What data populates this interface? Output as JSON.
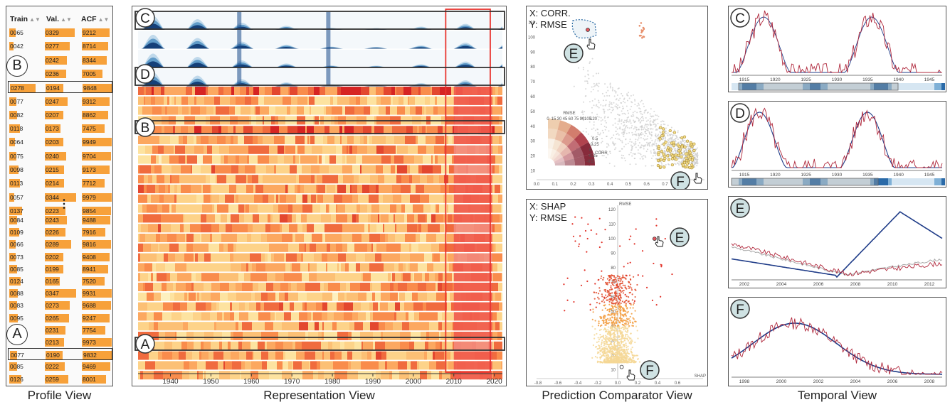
{
  "captions": {
    "profile": "Profile View",
    "representation": "Representation View",
    "comparator": "Prediction Comparator View",
    "temporal": "Temporal View"
  },
  "profile": {
    "headers": {
      "train": "Train",
      "val": "Val.",
      "acf": "ACF"
    },
    "sort_icon": "sort-icon",
    "ellipsis": "⋮",
    "rows_top": [
      {
        "train": "0065",
        "val": "0329",
        "acf": "9212",
        "tv": 0.25,
        "vv": 0.95,
        "av": 0.92
      },
      {
        "train": "0042",
        "val": "0277",
        "acf": "8714",
        "tv": 0.16,
        "vv": 0.8,
        "av": 0.87
      },
      {
        "train": "",
        "val": "0242",
        "acf": "8344",
        "tv": 0.0,
        "vv": 0.7,
        "av": 0.83
      },
      {
        "train": "",
        "val": "0236",
        "acf": "7005",
        "tv": 0.0,
        "vv": 0.68,
        "av": 0.7
      },
      {
        "train": "0278",
        "val": "0194",
        "acf": "9848",
        "tv": 1.0,
        "vv": 0.56,
        "av": 0.98
      },
      {
        "train": "0077",
        "val": "0247",
        "acf": "9312",
        "tv": 0.28,
        "vv": 0.72,
        "av": 0.93
      },
      {
        "train": "0082",
        "val": "0207",
        "acf": "8862",
        "tv": 0.3,
        "vv": 0.6,
        "av": 0.89
      },
      {
        "train": "0118",
        "val": "0173",
        "acf": "7475",
        "tv": 0.42,
        "vv": 0.5,
        "av": 0.75
      },
      {
        "train": "0064",
        "val": "0203",
        "acf": "9949",
        "tv": 0.23,
        "vv": 0.59,
        "av": 0.99
      },
      {
        "train": "0075",
        "val": "0240",
        "acf": "9704",
        "tv": 0.27,
        "vv": 0.69,
        "av": 0.97
      },
      {
        "train": "0098",
        "val": "0215",
        "acf": "9173",
        "tv": 0.35,
        "vv": 0.62,
        "av": 0.92
      },
      {
        "train": "0113",
        "val": "0214",
        "acf": "7712",
        "tv": 0.41,
        "vv": 0.62,
        "av": 0.77
      },
      {
        "train": "0057",
        "val": "0344",
        "acf": "9979",
        "tv": 0.2,
        "vv": 1.0,
        "av": 1.0
      },
      {
        "train": "0137",
        "val": "0223",
        "acf": "9854",
        "tv": 0.49,
        "vv": 0.65,
        "av": 0.98
      }
    ],
    "rows_bottom": [
      {
        "train": "0084",
        "val": "0243",
        "acf": "9488",
        "tv": 0.3,
        "vv": 0.7,
        "av": 0.95
      },
      {
        "train": "0109",
        "val": "0226",
        "acf": "7916",
        "tv": 0.39,
        "vv": 0.66,
        "av": 0.79
      },
      {
        "train": "0066",
        "val": "0289",
        "acf": "9816",
        "tv": 0.24,
        "vv": 0.84,
        "av": 0.98
      },
      {
        "train": "0073",
        "val": "0202",
        "acf": "9408",
        "tv": 0.26,
        "vv": 0.59,
        "av": 0.94
      },
      {
        "train": "0085",
        "val": "0199",
        "acf": "8941",
        "tv": 0.31,
        "vv": 0.58,
        "av": 0.89
      },
      {
        "train": "0124",
        "val": "0165",
        "acf": "7520",
        "tv": 0.45,
        "vv": 0.48,
        "av": 0.75
      },
      {
        "train": "0088",
        "val": "0347",
        "acf": "9931",
        "tv": 0.32,
        "vv": 1.0,
        "av": 0.99
      },
      {
        "train": "0083",
        "val": "0273",
        "acf": "9688",
        "tv": 0.3,
        "vv": 0.79,
        "av": 0.97
      },
      {
        "train": "0095",
        "val": "0265",
        "acf": "9247",
        "tv": 0.34,
        "vv": 0.77,
        "av": 0.92
      },
      {
        "train": "",
        "val": "0231",
        "acf": "7754",
        "tv": 0.0,
        "vv": 0.67,
        "av": 0.78
      },
      {
        "train": "",
        "val": "0213",
        "acf": "9973",
        "tv": 0.0,
        "vv": 0.62,
        "av": 1.0
      },
      {
        "train": "0077",
        "val": "0190",
        "acf": "9832",
        "tv": 0.28,
        "vv": 0.55,
        "av": 0.98
      },
      {
        "train": "0085",
        "val": "0222",
        "acf": "9469",
        "tv": 0.31,
        "vv": 0.64,
        "av": 0.95
      },
      {
        "train": "0126",
        "val": "0259",
        "acf": "8001",
        "tv": 0.46,
        "vv": 0.75,
        "av": 0.8
      }
    ],
    "selected": {
      "B": 4,
      "A": 11
    }
  },
  "representation": {
    "x_ticks": [
      "1940",
      "1950",
      "1960",
      "1970",
      "1980",
      "1990",
      "2000",
      "2010",
      "2020"
    ],
    "x_range": [
      1932,
      2022
    ],
    "highlight_years": [
      2008,
      2019
    ],
    "sparkline_rows": 4,
    "heat_rows": 30,
    "markers": [
      "C",
      "D",
      "B",
      "A"
    ]
  },
  "comparator": {
    "top": {
      "x_label": "X: CORR.",
      "y_label": "Y: RMSE",
      "y_ticks": [
        "10",
        "20",
        "30",
        "40",
        "50",
        "60",
        "70",
        "80",
        "90",
        "100",
        "110"
      ],
      "x_ticks": [
        "0.0",
        "0.1",
        "0.2",
        "0.3",
        "0.4",
        "0.5",
        "0.6",
        "0.7",
        "0.8"
      ],
      "legend_title": "RMSE",
      "legend_ticks": [
        "0",
        "15",
        "30",
        "45",
        "60",
        "75",
        "90",
        "105",
        "120"
      ],
      "legend_axis": "CORR",
      "legend_r_ticks": [
        "0.5",
        "0.25",
        "0",
        "-0.25",
        "-0.5"
      ],
      "markers": [
        "E",
        "F"
      ]
    },
    "bottom": {
      "x_label": "X: SHAP",
      "y_label": "Y: RMSE",
      "y_axis_name": "RMSE",
      "x_axis_name": "SHAP",
      "y_ticks": [
        "10",
        "20",
        "30",
        "40",
        "50",
        "60",
        "70",
        "80",
        "90",
        "100",
        "110",
        "120"
      ],
      "x_ticks": [
        "-0.8",
        "-0.6",
        "-0.4",
        "-0.2",
        "0.0",
        "0.2",
        "0.4",
        "0.6"
      ],
      "markers": [
        "E",
        "F"
      ]
    }
  },
  "temporal": {
    "C": {
      "marker": "C",
      "years": [
        "1915",
        "1920",
        "1925",
        "1930",
        "1935",
        "1940",
        "1945"
      ]
    },
    "D": {
      "marker": "D",
      "years": [
        "1915",
        "1920",
        "1925",
        "1930",
        "1935",
        "1940",
        "1945"
      ]
    },
    "E": {
      "marker": "E",
      "years": [
        "2002",
        "2004",
        "2006",
        "2008",
        "2010",
        "2012"
      ]
    },
    "F": {
      "marker": "F",
      "years": [
        "1998",
        "2000",
        "2002",
        "2004",
        "2006",
        "2008"
      ]
    }
  },
  "colors": {
    "accent_orange": "#f7a13a",
    "highlight_red": "#e8332e",
    "heat_low": "#fde9a8",
    "heat_high": "#e31a1c",
    "spark_dark": "#08306b",
    "line_blue": "#1f3c88",
    "line_red": "#b0283c",
    "marker_teal": "#cfe2e3"
  }
}
